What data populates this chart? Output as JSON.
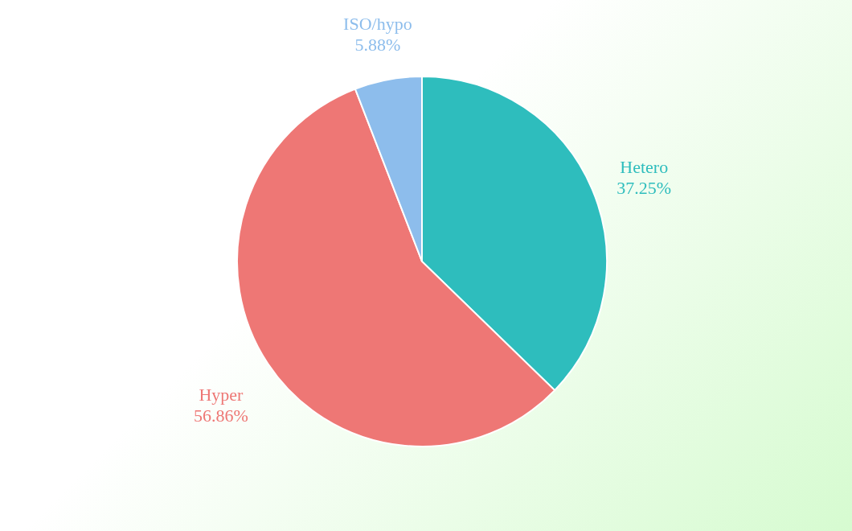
{
  "chart_data": {
    "type": "pie",
    "categories": [
      "Hetero",
      "Hyper",
      "ISO/hypo"
    ],
    "values": [
      37.25,
      56.86,
      5.88
    ],
    "colors": [
      "#2ebdbd",
      "#ee7775",
      "#8dbdec"
    ],
    "value_labels": [
      "37.25%",
      "56.86%",
      "5.88%"
    ],
    "legend": false
  }
}
